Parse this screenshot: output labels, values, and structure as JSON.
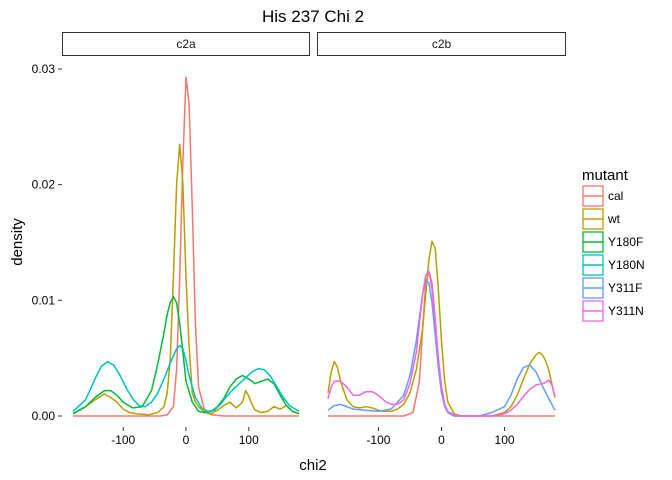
{
  "chart_data": {
    "type": "line",
    "title": "His 237 Chi 2",
    "xlabel": "chi2",
    "ylabel": "density",
    "xlim": [
      -180,
      180
    ],
    "ylim": [
      0,
      0.03
    ],
    "x_ticks": [
      -100,
      0,
      100
    ],
    "x_tick_labels": [
      "-100",
      "0",
      "100"
    ],
    "y_ticks": [
      0.0,
      0.01,
      0.02,
      0.03
    ],
    "y_tick_labels": [
      "0.00",
      "0.01",
      "0.02",
      "0.03"
    ],
    "grid": false,
    "legend_title": "mutant",
    "legend_position": "right",
    "panels": [
      {
        "name": "c2a",
        "series": [
          {
            "name": "cal",
            "color": "#F8766D",
            "x": [
              -180,
              -160,
              -140,
              -120,
              -100,
              -80,
              -60,
              -40,
              -30,
              -20,
              -15,
              -10,
              -5,
              0,
              5,
              10,
              15,
              20,
              30,
              40,
              60,
              80,
              100,
              120,
              140,
              160,
              180
            ],
            "y": [
              0.0,
              0.0,
              0.0,
              0.0,
              0.0,
              0.0,
              0.0,
              0.0,
              0.0001,
              0.0008,
              0.004,
              0.012,
              0.022,
              0.0293,
              0.027,
              0.018,
              0.008,
              0.0025,
              0.0004,
              0.0001,
              0.0,
              0.0,
              0.0,
              0.0,
              0.0,
              0.0,
              0.0
            ]
          },
          {
            "name": "wt",
            "color": "#B79F00",
            "x": [
              -180,
              -160,
              -145,
              -130,
              -120,
              -110,
              -100,
              -90,
              -80,
              -60,
              -45,
              -35,
              -30,
              -25,
              -20,
              -15,
              -10,
              -5,
              0,
              5,
              10,
              15,
              20,
              30,
              40,
              50,
              60,
              70,
              80,
              90,
              95,
              100,
              105,
              110,
              120,
              130,
              140,
              150,
              160,
              170,
              180
            ],
            "y": [
              0.0002,
              0.0008,
              0.0014,
              0.0019,
              0.0016,
              0.0012,
              0.0006,
              0.0003,
              0.0002,
              0.0001,
              0.0003,
              0.0008,
              0.002,
              0.005,
              0.012,
              0.02,
              0.0235,
              0.02,
              0.012,
              0.006,
              0.002,
              0.0012,
              0.0008,
              0.0003,
              0.0002,
              0.0005,
              0.0009,
              0.0012,
              0.0007,
              0.0012,
              0.0022,
              0.0017,
              0.001,
              0.0005,
              0.0003,
              0.0004,
              0.0008,
              0.0006,
              0.0009,
              0.0004,
              0.0002
            ]
          },
          {
            "name": "Y180F",
            "color": "#00BA38",
            "x": [
              -180,
              -160,
              -145,
              -130,
              -120,
              -110,
              -100,
              -85,
              -70,
              -55,
              -45,
              -35,
              -30,
              -25,
              -20,
              -15,
              -10,
              -5,
              0,
              10,
              20,
              30,
              40,
              50,
              60,
              70,
              80,
              90,
              100,
              110,
              120,
              130,
              140,
              150,
              160,
              170,
              180
            ],
            "y": [
              0.0002,
              0.0008,
              0.0016,
              0.0022,
              0.0022,
              0.0018,
              0.0012,
              0.0007,
              0.0008,
              0.0022,
              0.0045,
              0.0072,
              0.0088,
              0.0098,
              0.0103,
              0.0098,
              0.008,
              0.0055,
              0.003,
              0.0012,
              0.0004,
              0.0003,
              0.0004,
              0.0008,
              0.0015,
              0.0025,
              0.0032,
              0.0035,
              0.0032,
              0.0028,
              0.003,
              0.0032,
              0.0028,
              0.0018,
              0.0009,
              0.0004,
              0.0002
            ]
          },
          {
            "name": "Y180N",
            "color": "#00BFC4",
            "x": [
              -180,
              -160,
              -145,
              -135,
              -125,
              -115,
              -105,
              -95,
              -85,
              -75,
              -65,
              -55,
              -45,
              -35,
              -25,
              -15,
              -10,
              -5,
              0,
              5,
              15,
              25,
              35,
              45,
              55,
              65,
              75,
              85,
              95,
              105,
              115,
              125,
              135,
              145,
              155,
              165,
              180
            ],
            "y": [
              0.0004,
              0.0014,
              0.0032,
              0.0043,
              0.0047,
              0.0044,
              0.0035,
              0.0024,
              0.0015,
              0.0009,
              0.0008,
              0.0012,
              0.002,
              0.0032,
              0.0046,
              0.0058,
              0.0061,
              0.0058,
              0.0048,
              0.0035,
              0.0016,
              0.0007,
              0.0004,
              0.0005,
              0.001,
              0.0017,
              0.0023,
              0.0028,
              0.0033,
              0.0038,
              0.0041,
              0.004,
              0.0034,
              0.0025,
              0.0016,
              0.0009,
              0.0004
            ]
          },
          {
            "name": "Y311F",
            "color": "#619CFF",
            "x": [],
            "y": []
          },
          {
            "name": "Y311N",
            "color": "#F564E3",
            "x": [],
            "y": []
          }
        ]
      },
      {
        "name": "c2b",
        "series": [
          {
            "name": "cal",
            "color": "#F8766D",
            "x": [
              -180,
              -160,
              -140,
              -120,
              -100,
              -80,
              -60,
              -45,
              -35,
              -30,
              -25,
              -20,
              -15,
              -10,
              -5,
              0,
              5,
              10,
              20,
              30,
              40,
              60,
              80,
              100,
              120,
              140,
              160,
              180
            ],
            "y": [
              0.0,
              0.0,
              0.0,
              0.0,
              0.0,
              0.0,
              0.0,
              0.0003,
              0.003,
              0.0075,
              0.0115,
              0.0125,
              0.0115,
              0.0085,
              0.005,
              0.0025,
              0.001,
              0.0003,
              0.0,
              0.0,
              0.0,
              0.0,
              0.0,
              0.0,
              0.0,
              0.0,
              0.0,
              0.0
            ]
          },
          {
            "name": "wt",
            "color": "#B79F00",
            "x": [
              -180,
              -175,
              -170,
              -165,
              -160,
              -150,
              -140,
              -130,
              -120,
              -110,
              -100,
              -90,
              -80,
              -70,
              -60,
              -50,
              -40,
              -30,
              -25,
              -20,
              -15,
              -10,
              -5,
              0,
              5,
              10,
              20,
              30,
              40,
              60,
              80,
              100,
              110,
              120,
              130,
              140,
              150,
              155,
              160,
              165,
              170,
              175,
              180
            ],
            "y": [
              0.002,
              0.0038,
              0.0047,
              0.0042,
              0.003,
              0.0014,
              0.0008,
              0.0007,
              0.0008,
              0.0007,
              0.0005,
              0.0004,
              0.0004,
              0.0006,
              0.001,
              0.002,
              0.004,
              0.0075,
              0.0105,
              0.0135,
              0.0151,
              0.0145,
              0.011,
              0.0065,
              0.003,
              0.0012,
              0.0002,
              0.0,
              0.0,
              0.0,
              0.0,
              0.0003,
              0.0008,
              0.0018,
              0.0032,
              0.0045,
              0.0053,
              0.0055,
              0.0053,
              0.0048,
              0.004,
              0.0028,
              0.0016
            ]
          },
          {
            "name": "Y180F",
            "color": "#00BA38",
            "x": [],
            "y": []
          },
          {
            "name": "Y180N",
            "color": "#00BFC4",
            "x": [],
            "y": []
          },
          {
            "name": "Y311F",
            "color": "#619CFF",
            "x": [
              -180,
              -170,
              -160,
              -150,
              -140,
              -120,
              -100,
              -80,
              -60,
              -50,
              -40,
              -35,
              -30,
              -25,
              -20,
              -15,
              -10,
              -5,
              0,
              5,
              10,
              20,
              30,
              40,
              60,
              80,
              100,
              110,
              120,
              130,
              140,
              150,
              160,
              170,
              180
            ],
            "y": [
              0.0005,
              0.0009,
              0.001,
              0.0008,
              0.0006,
              0.0005,
              0.0004,
              0.0006,
              0.0018,
              0.0035,
              0.0065,
              0.0085,
              0.0105,
              0.0118,
              0.0115,
              0.0098,
              0.007,
              0.0042,
              0.002,
              0.0008,
              0.0003,
              0.0,
              0.0,
              0.0,
              0.0,
              0.0003,
              0.0008,
              0.0018,
              0.0032,
              0.0042,
              0.0044,
              0.0038,
              0.0026,
              0.0015,
              0.0005
            ]
          },
          {
            "name": "Y311N",
            "color": "#F564E3",
            "x": [
              -180,
              -175,
              -170,
              -160,
              -150,
              -140,
              -130,
              -120,
              -110,
              -100,
              -90,
              -80,
              -70,
              -60,
              -50,
              -40,
              -35,
              -30,
              -25,
              -20,
              -15,
              -10,
              -5,
              0,
              5,
              10,
              20,
              30,
              40,
              60,
              80,
              100,
              110,
              120,
              130,
              140,
              150,
              160,
              165,
              170,
              175,
              180
            ],
            "y": [
              0.0015,
              0.0025,
              0.003,
              0.003,
              0.0025,
              0.0018,
              0.0018,
              0.0021,
              0.0021,
              0.0018,
              0.0013,
              0.001,
              0.001,
              0.0014,
              0.0028,
              0.0055,
              0.008,
              0.0105,
              0.0122,
              0.0125,
              0.011,
              0.008,
              0.005,
              0.0025,
              0.001,
              0.0004,
              0.0001,
              0.0,
              0.0,
              0.0,
              0.0,
              0.0002,
              0.0005,
              0.001,
              0.0017,
              0.0023,
              0.0027,
              0.0028,
              0.0029,
              0.0031,
              0.0027,
              0.0017
            ]
          }
        ]
      }
    ]
  }
}
